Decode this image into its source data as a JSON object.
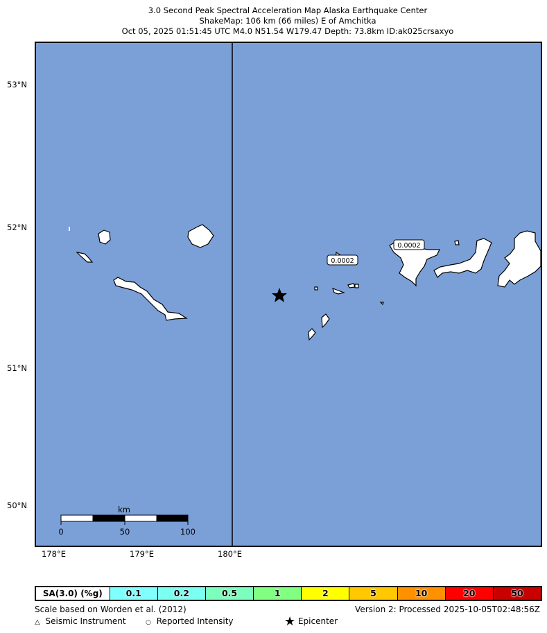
{
  "title": {
    "line1": "3.0 Second Peak Spectral Acceleration Map Alaska Earthquake Center",
    "line2": "ShakeMap: 106 km (66 miles) E of Amchitka",
    "line3": "Oct 05, 2025 01:51:45 UTC M4.0 N51.54 W179.47 Depth: 73.8km ID:ak025crsaxyo"
  },
  "map": {
    "background_color": "#7ba0d8",
    "lat_labels": [
      "53°N",
      "52°N",
      "51°N",
      "50°N"
    ],
    "lon_labels": [
      "178°E",
      "179°E",
      "180°E"
    ],
    "station_labels": [
      "0.0002",
      "0.0002"
    ],
    "scale_bar": {
      "unit": "km",
      "ticks": [
        "0",
        "50",
        "100"
      ]
    },
    "epicenter_icon": "star-icon"
  },
  "legend": {
    "label": "SA(3.0) (%g)",
    "bins": [
      {
        "value": "0.1",
        "color": "#80ffff"
      },
      {
        "value": "0.2",
        "color": "#7afff0"
      },
      {
        "value": "0.5",
        "color": "#7cffbc"
      },
      {
        "value": "1",
        "color": "#80ff80"
      },
      {
        "value": "2",
        "color": "#ffff00"
      },
      {
        "value": "5",
        "color": "#ffc800"
      },
      {
        "value": "10",
        "color": "#ff9100"
      },
      {
        "value": "20",
        "color": "#ff0000"
      },
      {
        "value": "50",
        "color": "#c80000"
      }
    ]
  },
  "footer": {
    "scale_note": "Scale based on Worden et al. (2012)",
    "version": "Version 2: Processed 2025-10-05T02:48:56Z",
    "seismic_instrument": "Seismic Instrument",
    "reported_intensity": "Reported Intensity",
    "epicenter": "Epicenter"
  }
}
